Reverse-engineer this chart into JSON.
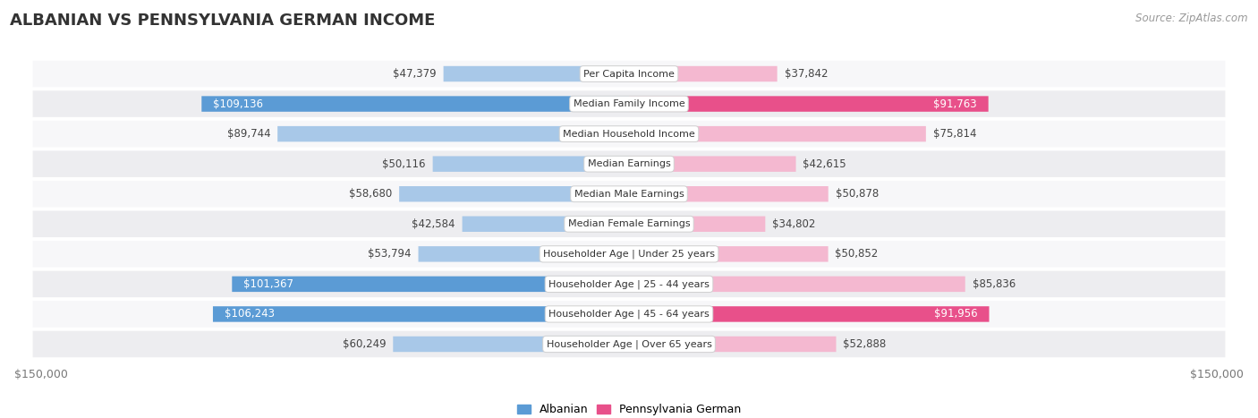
{
  "title": "ALBANIAN VS PENNSYLVANIA GERMAN INCOME",
  "source": "Source: ZipAtlas.com",
  "categories": [
    "Per Capita Income",
    "Median Family Income",
    "Median Household Income",
    "Median Earnings",
    "Median Male Earnings",
    "Median Female Earnings",
    "Householder Age | Under 25 years",
    "Householder Age | 25 - 44 years",
    "Householder Age | 45 - 64 years",
    "Householder Age | Over 65 years"
  ],
  "albanian_values": [
    47379,
    109136,
    89744,
    50116,
    58680,
    42584,
    53794,
    101367,
    106243,
    60249
  ],
  "pennger_values": [
    37842,
    91763,
    75814,
    42615,
    50878,
    34802,
    50852,
    85836,
    91956,
    52888
  ],
  "albanian_labels": [
    "$47,379",
    "$109,136",
    "$89,744",
    "$50,116",
    "$58,680",
    "$42,584",
    "$53,794",
    "$101,367",
    "$106,243",
    "$60,249"
  ],
  "pennger_labels": [
    "$37,842",
    "$91,763",
    "$75,814",
    "$42,615",
    "$50,878",
    "$34,802",
    "$50,852",
    "$85,836",
    "$91,956",
    "$52,888"
  ],
  "albanian_color_light": "#a8c8e8",
  "albanian_color_dark": "#5b9bd5",
  "pennger_color_light": "#f4b8d0",
  "pennger_color_dark": "#e8508a",
  "max_value": 150000,
  "x_tick_labels": [
    "$150,000",
    "$150,000"
  ],
  "bar_height": 0.52,
  "row_bg_even": "#f7f7f9",
  "row_bg_odd": "#ededf0",
  "background_color": "#ffffff",
  "title_fontsize": 13,
  "label_fontsize": 8.5,
  "category_fontsize": 8,
  "source_fontsize": 8.5,
  "inside_label_threshold": 0.6
}
